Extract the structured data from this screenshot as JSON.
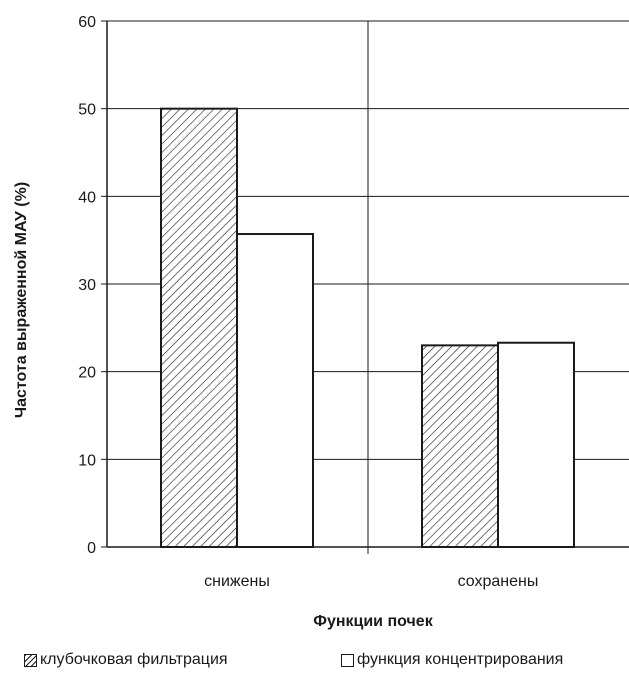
{
  "chart_data": {
    "type": "bar",
    "categories": [
      "снижены",
      "сохранены"
    ],
    "series": [
      {
        "name": "клубочковая фильтрация",
        "values": [
          50,
          23
        ],
        "pattern": "hatched"
      },
      {
        "name": "функция концентрирования",
        "values": [
          35.7,
          23.3
        ],
        "pattern": "white"
      }
    ],
    "title": "",
    "xlabel": "Функции почек",
    "ylabel": "Частота выраженной МАУ (%)",
    "ylim": [
      0,
      60
    ],
    "yticks": [
      0,
      10,
      20,
      30,
      40,
      50,
      60
    ],
    "grid": true,
    "legend_position": "bottom"
  },
  "colors": {
    "bar_outline": "#1a1a1a",
    "hatched_fill": "#1a1a1a",
    "plain_fill": "#ffffff",
    "grid": "#1a1a1a"
  }
}
